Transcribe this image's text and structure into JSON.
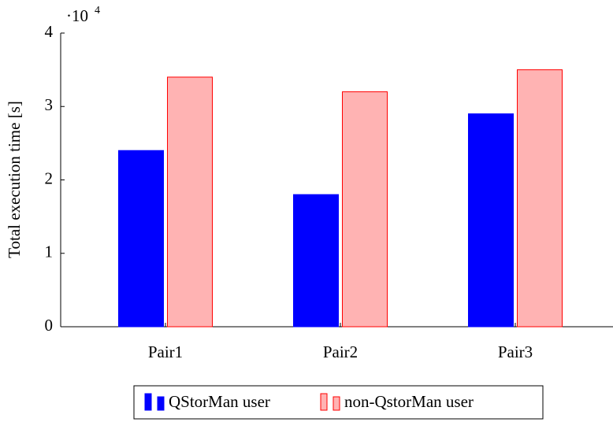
{
  "chart_data": {
    "type": "bar",
    "y_label": "Total execution time [s]",
    "axis_multiplier": {
      "base": "·10",
      "exponent": "4"
    },
    "categories": [
      "Pair1",
      "Pair2",
      "Pair3"
    ],
    "series": [
      {
        "name": "QStorMan user",
        "color": "#0000ff",
        "edge_color": "#0000ff",
        "values": [
          2.4,
          1.8,
          2.9
        ]
      },
      {
        "name": "non-QstorMan user",
        "color": "#ffb3b3",
        "edge_color": "#ff0000",
        "values": [
          3.4,
          3.2,
          3.5
        ]
      }
    ],
    "ylim": [
      0,
      4
    ],
    "yticks": [
      0,
      1,
      2,
      3,
      4
    ],
    "grid": false,
    "legend": "bottom"
  }
}
